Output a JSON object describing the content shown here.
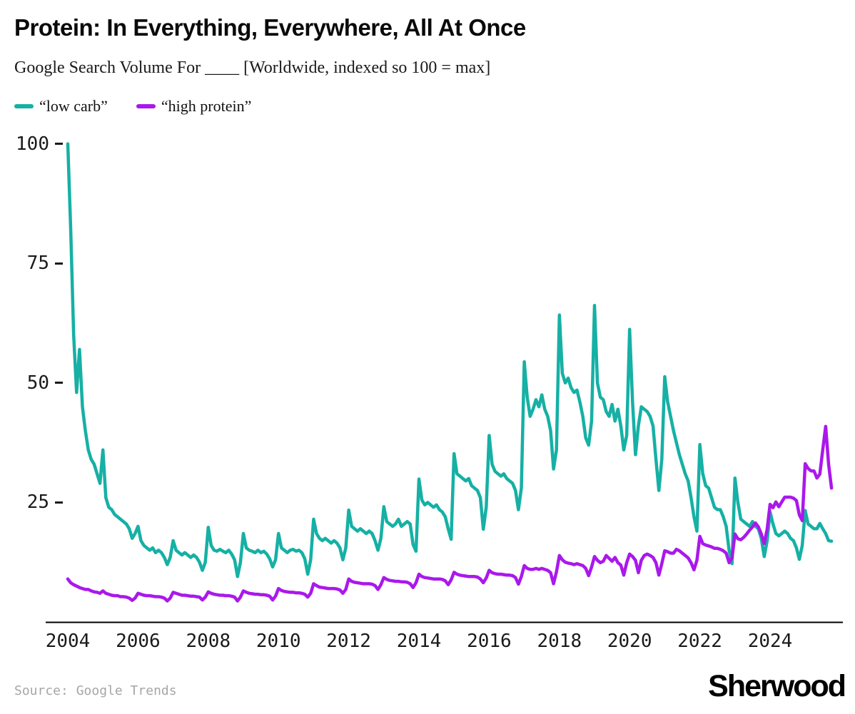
{
  "header": {
    "title": "Protein: In Everything, Everywhere, All At Once",
    "subtitle": "Google Search Volume For ____ [Worldwide, indexed so 100 = max]"
  },
  "legend": [
    {
      "label": "“low carb”",
      "color": "#16b0a5"
    },
    {
      "label": "“high protein”",
      "color": "#aa18eb"
    }
  ],
  "footer": {
    "source": "Source: Google Trends",
    "brand": "Sherwood"
  },
  "chart_data": {
    "type": "line",
    "title": "Protein: In Everything, Everywhere, All At Once",
    "subtitle": "Google Search Volume For ____ [Worldwide, indexed so 100 = max]",
    "x_unit": "month",
    "x_start": "2004-01",
    "x_end": "2025-10",
    "x_tick_labels": [
      "2004",
      "2006",
      "2008",
      "2010",
      "2012",
      "2014",
      "2016",
      "2018",
      "2020",
      "2022",
      "2024"
    ],
    "y_ticks": [
      100,
      75,
      50,
      25
    ],
    "ylim": [
      0,
      100
    ],
    "grid": false,
    "legend_position": "top-left",
    "series": [
      {
        "name": "“low carb”",
        "color": "#16b0a5",
        "values": [
          100,
          82,
          60,
          48,
          57,
          45,
          40,
          36,
          34,
          33,
          31,
          29,
          36,
          26,
          24,
          23.5,
          22.5,
          22,
          21.5,
          21,
          20.5,
          19.5,
          17.5,
          18.5,
          20,
          17,
          16,
          15.5,
          15,
          15.5,
          14.5,
          15,
          14.5,
          13.5,
          12,
          13.5,
          17,
          15,
          14.5,
          14,
          14.5,
          14,
          13.5,
          14,
          13.5,
          12.5,
          10.8,
          12.5,
          19.8,
          16,
          15,
          14.8,
          15.2,
          14.8,
          14.5,
          15,
          14.2,
          13,
          9.5,
          12.5,
          18.5,
          15.5,
          15,
          14.8,
          14.5,
          15,
          14.5,
          14.8,
          14.2,
          13.2,
          11.5,
          13,
          18.5,
          15.5,
          15,
          14.5,
          15,
          15.2,
          14.8,
          15,
          14.5,
          13.2,
          10,
          13,
          21.5,
          18.5,
          17.5,
          17,
          17.5,
          17,
          16.5,
          17,
          16.5,
          15.5,
          13,
          15.5,
          23.4,
          20,
          19.5,
          19,
          19.5,
          19,
          18.5,
          19,
          18.5,
          17,
          15,
          17.5,
          24.1,
          21,
          20.5,
          20,
          20.5,
          21.5,
          20,
          20.5,
          21,
          20.5,
          16.2,
          14.8,
          29.9,
          25.5,
          24.5,
          25,
          24.5,
          24,
          24.5,
          23.5,
          23,
          22,
          19.5,
          17.3,
          35.2,
          31,
          30.5,
          30,
          29.5,
          30,
          28.5,
          28,
          27.5,
          26,
          19.4,
          24,
          39,
          33,
          31.5,
          31,
          30.5,
          31,
          30,
          29.5,
          29,
          27.5,
          23.5,
          28,
          54.4,
          47,
          43,
          44.5,
          46.5,
          45,
          47.5,
          44.5,
          43,
          40,
          32,
          36,
          64.2,
          52,
          50,
          51,
          49,
          48,
          48.5,
          46,
          43,
          38.5,
          37,
          42,
          66.2,
          50,
          47,
          46.5,
          44,
          43,
          45.5,
          42,
          44.5,
          41,
          36,
          39,
          61.2,
          46,
          35,
          41,
          45,
          44.5,
          44,
          43,
          41,
          34,
          27.5,
          34,
          51.3,
          46,
          43,
          40,
          37.5,
          35,
          33,
          31,
          29.5,
          26,
          22,
          19,
          37.1,
          31,
          28.5,
          28,
          26,
          24,
          23.5,
          23.5,
          22,
          20,
          15,
          12.2,
          30.1,
          25,
          21.5,
          21,
          20.5,
          20,
          21,
          20,
          19.5,
          17.5,
          13.7,
          17,
          23,
          20.5,
          18.5,
          18,
          18.5,
          19,
          18.5,
          17.5,
          17,
          15.5,
          13.1,
          16,
          23.3,
          20.5,
          20,
          19.5,
          19.5,
          20.6,
          19.5,
          18.5,
          17,
          16.9
        ]
      },
      {
        "name": "“high protein”",
        "color": "#aa18eb",
        "values": [
          9,
          8.2,
          7.8,
          7.5,
          7.2,
          7,
          6.8,
          6.8,
          6.5,
          6.3,
          6.2,
          6,
          6.5,
          6,
          5.8,
          5.6,
          5.5,
          5.5,
          5.3,
          5.3,
          5.2,
          5,
          4.5,
          5,
          6,
          5.8,
          5.6,
          5.5,
          5.5,
          5.4,
          5.3,
          5.3,
          5.2,
          5,
          4.4,
          5,
          6.2,
          6,
          5.8,
          5.6,
          5.6,
          5.5,
          5.4,
          5.4,
          5.3,
          5.2,
          4.6,
          5.2,
          6.3,
          6,
          5.8,
          5.7,
          5.6,
          5.6,
          5.5,
          5.5,
          5.4,
          5.2,
          4.4,
          5.2,
          6.5,
          6.2,
          6,
          5.9,
          5.8,
          5.8,
          5.7,
          5.7,
          5.6,
          5.4,
          4.6,
          5.4,
          7,
          6.6,
          6.4,
          6.3,
          6.2,
          6.2,
          6.1,
          6.1,
          6,
          5.8,
          5.2,
          6,
          8,
          7.6,
          7.3,
          7.2,
          7.1,
          7,
          7,
          7,
          6.9,
          6.7,
          6,
          6.8,
          9,
          8.5,
          8.3,
          8.2,
          8.1,
          8,
          8,
          8,
          7.9,
          7.6,
          6.8,
          7.8,
          9.3,
          8.9,
          8.7,
          8.6,
          8.5,
          8.5,
          8.4,
          8.4,
          8.3,
          8,
          7.2,
          8.2,
          10,
          9.5,
          9.3,
          9.2,
          9.1,
          9,
          9,
          9,
          8.9,
          8.6,
          7.8,
          8.8,
          10.4,
          10,
          9.8,
          9.7,
          9.6,
          9.5,
          9.5,
          9.5,
          9.4,
          9,
          8.2,
          9.2,
          10.8,
          10.3,
          10.1,
          10,
          10,
          9.9,
          9.8,
          9.8,
          9.7,
          9.3,
          7.9,
          9.5,
          11.8,
          11.2,
          11,
          11,
          11.2,
          11,
          11.2,
          11,
          10.8,
          10.3,
          8,
          10.5,
          13.9,
          13,
          12.5,
          12.3,
          12.2,
          12,
          12.2,
          12,
          11.8,
          11.2,
          9.7,
          11.5,
          13.7,
          12.9,
          12.4,
          12.7,
          13.9,
          13.3,
          12.7,
          13.5,
          12.4,
          11.9,
          9.8,
          12.4,
          14.2,
          13.7,
          12.9,
          10.3,
          12.9,
          13.9,
          14.2,
          13.9,
          13.5,
          12.4,
          9.8,
          12.2,
          14.9,
          14.7,
          14.4,
          14.4,
          15.2,
          14.9,
          14.4,
          13.9,
          13.4,
          12.4,
          10.9,
          12.9,
          17.9,
          16.4,
          16.1,
          15.9,
          15.7,
          15.4,
          15.4,
          15.2,
          14.9,
          14.4,
          12.4,
          13.4,
          18.4,
          17.4,
          17.2,
          17.7,
          18.4,
          19.2,
          19.9,
          20.7,
          19.9,
          18.4,
          16.4,
          19.4,
          24.6,
          23.9,
          25.1,
          24.1,
          25.1,
          26.1,
          26.1,
          26.1,
          25.9,
          25.4,
          22.4,
          21.2,
          33.1,
          32.1,
          31.6,
          31.6,
          30.1,
          30.9,
          36,
          40.9,
          33,
          28
        ]
      }
    ]
  }
}
